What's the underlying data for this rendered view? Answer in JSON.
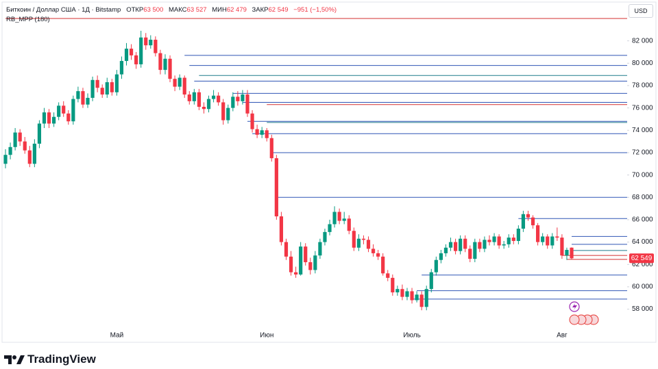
{
  "header": {
    "symbol": "Биткоин / Доллар США · 1Д · Bitstamp",
    "stats": [
      {
        "label": "ОТКР",
        "value": "63 500"
      },
      {
        "label": "МАКС",
        "value": "63 527"
      },
      {
        "label": "МИН",
        "value": "62 479"
      },
      {
        "label": "ЗАКР",
        "value": "62 549"
      }
    ],
    "change": "−951 (−1,50%)",
    "indicator": "RB_MPP (180)",
    "currency": "USD"
  },
  "brand": "TradingView",
  "chart_data": {
    "type": "candlestick",
    "up_color": "#089981",
    "down_color": "#f23645",
    "categories": [
      null,
      null,
      null,
      null,
      null,
      null,
      null,
      null,
      null,
      null,
      null,
      null,
      null,
      null,
      null,
      null,
      null,
      null,
      null,
      null,
      null,
      null,
      null,
      "Май",
      null,
      null,
      null,
      null,
      null,
      null,
      null,
      null,
      null,
      null,
      null,
      null,
      null,
      null,
      null,
      null,
      null,
      null,
      null,
      null,
      null,
      null,
      null,
      null,
      null,
      null,
      null,
      null,
      null,
      null,
      "Июн",
      null,
      null,
      null,
      null,
      null,
      null,
      null,
      null,
      null,
      null,
      null,
      null,
      null,
      null,
      null,
      null,
      null,
      null,
      null,
      null,
      null,
      null,
      null,
      null,
      null,
      null,
      null,
      null,
      null,
      "Июль",
      null,
      null,
      null,
      null,
      null,
      null,
      null,
      null,
      null,
      null,
      null,
      null,
      null,
      null,
      null,
      null,
      null,
      null,
      null,
      null,
      null,
      null,
      null,
      null,
      null,
      null,
      null,
      null,
      null,
      null,
      "Авг",
      null,
      null
    ],
    "open": [
      71000,
      71800,
      72500,
      73800,
      73000,
      72200,
      71000,
      72800,
      74600,
      75600,
      74600,
      75200,
      76200,
      75500,
      74800,
      76800,
      77500,
      76300,
      76900,
      78500,
      77800,
      77200,
      78300,
      77400,
      79000,
      80200,
      81300,
      80700,
      79900,
      82300,
      81600,
      82100,
      80900,
      79400,
      80400,
      78600,
      77900,
      78700,
      77200,
      76600,
      77400,
      76100,
      75900,
      76800,
      77100,
      76500,
      74900,
      76000,
      77000,
      76600,
      77200,
      75500,
      74100,
      73600,
      74000,
      73300,
      71500,
      66300,
      64000,
      62700,
      61300,
      61100,
      63600,
      62200,
      61500,
      62800,
      64000,
      64900,
      65600,
      66700,
      65900,
      66100,
      65000,
      63500,
      64300,
      64200,
      63400,
      63000,
      62700,
      61200,
      60800,
      59500,
      59800,
      59100,
      59600,
      58800,
      59300,
      58200,
      59800,
      61300,
      62400,
      63000,
      63500,
      64000,
      63200,
      64300,
      63400,
      62500,
      64000,
      63400,
      64200,
      64000,
      64500,
      63700,
      63800,
      64400,
      64100,
      65200,
      66500,
      66200,
      65500,
      64000,
      64500,
      63700,
      64500,
      64400,
      62800,
      63500
    ],
    "high": [
      72300,
      72900,
      74200,
      74100,
      73400,
      72600,
      73200,
      74900,
      76000,
      75900,
      75600,
      76500,
      76600,
      75800,
      77100,
      77900,
      77800,
      77300,
      78800,
      78900,
      78100,
      78700,
      78600,
      79400,
      80600,
      81800,
      81700,
      81000,
      82900,
      82700,
      82500,
      82400,
      81200,
      80800,
      80700,
      78900,
      79000,
      78900,
      77500,
      77700,
      77700,
      76500,
      77100,
      77600,
      77400,
      76800,
      76300,
      77400,
      77500,
      77600,
      77600,
      75800,
      74500,
      74300,
      74200,
      73600,
      71800,
      66700,
      64300,
      63200,
      61800,
      64000,
      63900,
      62600,
      63200,
      64300,
      65200,
      66000,
      67200,
      67000,
      66700,
      66400,
      65300,
      64700,
      64600,
      64500,
      63800,
      63300,
      63000,
      61500,
      61100,
      60100,
      60200,
      59900,
      59900,
      59600,
      59600,
      60100,
      61600,
      62700,
      63300,
      63800,
      64400,
      64300,
      64600,
      64600,
      63700,
      64300,
      64300,
      64500,
      64600,
      64800,
      64700,
      64100,
      64700,
      64700,
      65500,
      66800,
      66800,
      66400,
      65700,
      64800,
      64700,
      64800,
      65300,
      64700,
      63500,
      63527
    ],
    "low": [
      70600,
      71400,
      72200,
      72600,
      71900,
      70700,
      70700,
      72400,
      74200,
      74200,
      74300,
      74900,
      75200,
      74500,
      74500,
      76500,
      76000,
      76000,
      76600,
      77400,
      76900,
      76900,
      77100,
      77100,
      78600,
      79800,
      80300,
      79500,
      79600,
      81200,
      81300,
      80600,
      79000,
      79000,
      78300,
      77500,
      77600,
      76900,
      76300,
      76300,
      75800,
      75500,
      75600,
      76500,
      76200,
      74500,
      74600,
      75700,
      76200,
      76300,
      75200,
      73800,
      73300,
      73300,
      73000,
      71200,
      66000,
      63700,
      62400,
      61000,
      60800,
      61000,
      61900,
      61100,
      61200,
      62500,
      63700,
      64600,
      65300,
      65600,
      65600,
      64700,
      63200,
      63200,
      63800,
      63100,
      62700,
      62400,
      61000,
      60500,
      59200,
      59200,
      58800,
      58800,
      58500,
      58600,
      57900,
      57900,
      59500,
      61000,
      62100,
      62700,
      63200,
      62900,
      62900,
      63100,
      62200,
      62200,
      63100,
      63100,
      63700,
      63700,
      63400,
      63400,
      63500,
      63800,
      63800,
      64900,
      65900,
      65200,
      63700,
      63700,
      63400,
      63400,
      64100,
      62500,
      62400,
      62479
    ],
    "close": [
      71800,
      72500,
      73800,
      73000,
      72200,
      71000,
      72800,
      74600,
      75600,
      74600,
      75200,
      76200,
      75500,
      74800,
      76800,
      77500,
      76300,
      76900,
      78500,
      77800,
      77200,
      78300,
      77400,
      79000,
      80200,
      81300,
      80700,
      79900,
      82300,
      81600,
      82100,
      80900,
      79400,
      80400,
      78600,
      77900,
      78700,
      77200,
      76600,
      77400,
      76100,
      75900,
      76800,
      77100,
      76500,
      74900,
      76000,
      77000,
      76600,
      77200,
      75500,
      74100,
      73600,
      74000,
      73300,
      71500,
      66300,
      64000,
      62700,
      61300,
      61100,
      63600,
      62200,
      61500,
      62800,
      64000,
      64900,
      65600,
      66700,
      65900,
      66100,
      65000,
      63500,
      64300,
      64200,
      63400,
      63000,
      62700,
      61200,
      60800,
      59500,
      59800,
      59100,
      59600,
      58800,
      59300,
      58200,
      59800,
      61300,
      62400,
      63000,
      63500,
      64000,
      63200,
      64300,
      63400,
      62500,
      64000,
      63400,
      64200,
      64000,
      64500,
      63700,
      63800,
      64400,
      64100,
      65200,
      66500,
      66200,
      65500,
      64000,
      64500,
      63700,
      64500,
      64400,
      62800,
      63300,
      62549
    ],
    "last_price_label": "62 549",
    "ylim": [
      57300,
      84000
    ],
    "yticks": [
      {
        "value": 58000,
        "label": "58 000"
      },
      {
        "value": 60000,
        "label": "60 000"
      },
      {
        "value": 62000,
        "label": "62 000"
      },
      {
        "value": 64000,
        "label": "64 000"
      },
      {
        "value": 66000,
        "label": "66 000"
      },
      {
        "value": 68000,
        "label": "68 000"
      },
      {
        "value": 70000,
        "label": "70 000"
      },
      {
        "value": 72000,
        "label": "72 000"
      },
      {
        "value": 74000,
        "label": "74 000"
      },
      {
        "value": 76000,
        "label": "76 000"
      },
      {
        "value": 78000,
        "label": "78 000"
      },
      {
        "value": 80000,
        "label": "80 000"
      },
      {
        "value": 82000,
        "label": "82 000"
      }
    ],
    "levels": [
      {
        "price": 84000,
        "start": 0,
        "color": "#d32f2f"
      },
      {
        "price": 80700,
        "start": 37,
        "color": "#2f55b5"
      },
      {
        "price": 79800,
        "start": 38,
        "color": "#2f55b5"
      },
      {
        "price": 78900,
        "start": 40,
        "color": "#1f7a8c"
      },
      {
        "price": 78400,
        "start": 39,
        "color": "#2f55b5"
      },
      {
        "price": 77300,
        "start": 47,
        "color": "#2f55b5"
      },
      {
        "price": 76500,
        "start": 49,
        "color": "#2f55b5"
      },
      {
        "price": 76300,
        "start": 54,
        "color": "#d32f2f"
      },
      {
        "price": 74800,
        "start": 50,
        "color": "#2f55b5"
      },
      {
        "price": 74700,
        "start": 54,
        "color": "#1f7a8c"
      },
      {
        "price": 73700,
        "start": 51,
        "color": "#2f55b5"
      },
      {
        "price": 72000,
        "start": 55,
        "color": "#2f55b5"
      },
      {
        "price": 68000,
        "start": 56,
        "color": "#2f55b5"
      },
      {
        "price": 66100,
        "start": 106,
        "color": "#2f55b5"
      },
      {
        "price": 64500,
        "start": 117,
        "color": "#2f55b5"
      },
      {
        "price": 63800,
        "start": 117,
        "color": "#2f55b5"
      },
      {
        "price": 63250,
        "start": 117,
        "color": "#1f7a8c"
      },
      {
        "price": 62800,
        "start": 115,
        "color": "#d32f2f"
      },
      {
        "price": 62450,
        "start": 116,
        "color": "#d32f2f"
      },
      {
        "price": 61050,
        "start": 86,
        "color": "#2f55b5"
      },
      {
        "price": 59650,
        "start": 85,
        "color": "#2f55b5"
      },
      {
        "price": 58900,
        "start": 84,
        "color": "#2f55b5"
      }
    ]
  }
}
